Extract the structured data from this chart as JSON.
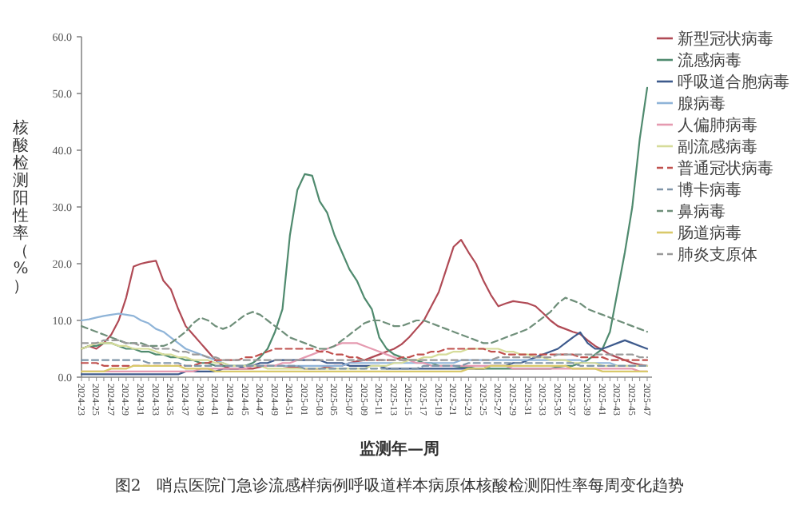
{
  "chart_data": {
    "type": "line",
    "xlabel": "监测年—周",
    "ylabel": "核酸检测阳性率（%）",
    "annotations": [
      "图2　哨点医院门急诊流感样病例呼吸道样本病原体核酸检测阳性率每周变化趋势"
    ],
    "categories": [
      "2024-23",
      null,
      "2024-25",
      null,
      "2024-27",
      null,
      "2024-29",
      null,
      "2024-31",
      null,
      "2024-33",
      null,
      "2024-35",
      null,
      "2024-37",
      null,
      "2024-39",
      null,
      "2024-41",
      null,
      "2024-43",
      null,
      "2024-45",
      null,
      "2024-47",
      null,
      "2024-49",
      null,
      "2024-51",
      null,
      "2025-01",
      null,
      "2025-03",
      null,
      "2025-05",
      null,
      "2025-07",
      null,
      "2025-09",
      null,
      "2025-11",
      null,
      "2025-13",
      null,
      "2025-15",
      null,
      "2025-17",
      null,
      "2025-19",
      null,
      "2025-21",
      null,
      "2025-23",
      null,
      "2025-25",
      null,
      "2025-27",
      null,
      "2025-29",
      null,
      "2025-31",
      null,
      "2025-33",
      null,
      "2025-35",
      null,
      "2025-37",
      null,
      "2025-39",
      null,
      "2025-41",
      null,
      "2025-43",
      null,
      "2025-45",
      null,
      "2025-47"
    ],
    "ylim": [
      0,
      60
    ],
    "yticks": [
      {
        "value": 0,
        "label": "0.0"
      },
      {
        "value": 10,
        "label": "10.0"
      },
      {
        "value": 20,
        "label": "20.0"
      },
      {
        "value": 30,
        "label": "30.0"
      },
      {
        "value": 40,
        "label": "40.0"
      },
      {
        "value": 50,
        "label": "50.0"
      },
      {
        "value": 60,
        "label": "60.0"
      }
    ],
    "legend": "right",
    "grid": false,
    "marker": "none",
    "series": [
      {
        "name": "新型冠状病毒",
        "color": "#b04a55",
        "line_style": "solid",
        "values": [
          5,
          5.5,
          5,
          6,
          7.5,
          10,
          14,
          19.5,
          20,
          20.3,
          20.5,
          17,
          15.5,
          12,
          9,
          7.5,
          6,
          4.5,
          3,
          2,
          1.5,
          1.5,
          1.5,
          1.5,
          1.8,
          2,
          2,
          2,
          1.8,
          1.8,
          1.5,
          1.5,
          1.5,
          1.8,
          2,
          2,
          2.5,
          2.8,
          3,
          3.5,
          4,
          4.5,
          5,
          5.8,
          7,
          8.5,
          10,
          12.5,
          15,
          19,
          23,
          24.2,
          22,
          20,
          17,
          14.5,
          12.5,
          13,
          13.4,
          13.2,
          13,
          12.5,
          11.3,
          10,
          9,
          8.5,
          8,
          7.6,
          6.5,
          5.5,
          4.8,
          4,
          3.5,
          3,
          2.5,
          2.2,
          2
        ]
      },
      {
        "name": "流感病毒",
        "color": "#4f8a6e",
        "line_style": "solid",
        "values": [
          5,
          5.5,
          5.5,
          6,
          6,
          5.5,
          5,
          5,
          4.5,
          4.5,
          4,
          4,
          3.5,
          3.5,
          3,
          3,
          2.5,
          2.5,
          2,
          2,
          2,
          2,
          2,
          2.5,
          3.5,
          5,
          8,
          12,
          25,
          33,
          35.8,
          35.5,
          31,
          29,
          25,
          22,
          19,
          17,
          14,
          12,
          7,
          5,
          4,
          3.5,
          3,
          3,
          2.5,
          2.5,
          2,
          2,
          2,
          1.8,
          1.8,
          1.5,
          1.5,
          1.5,
          1.5,
          1.5,
          1.5,
          1.5,
          1.5,
          1.5,
          1.5,
          1.5,
          1.8,
          2,
          2,
          2.5,
          3,
          4,
          5,
          8,
          15,
          22,
          30,
          42,
          51
        ]
      },
      {
        "name": "呼吸道合胞病毒",
        "color": "#3d5a8c",
        "line_style": "solid",
        "values": [
          0.5,
          0.5,
          0.5,
          0.5,
          0.5,
          0.5,
          0.5,
          0.5,
          0.5,
          0.5,
          0.5,
          0.5,
          0.5,
          0.5,
          1,
          1,
          1,
          1,
          1,
          1.5,
          1.5,
          1.5,
          2,
          2,
          2.5,
          2.5,
          3,
          3,
          3,
          3,
          3,
          3,
          3,
          2.5,
          2.5,
          2.5,
          2,
          2,
          2,
          2,
          2,
          1.5,
          1.5,
          1.5,
          1.5,
          1.5,
          1.5,
          1.5,
          1.5,
          1.5,
          1.5,
          1.5,
          1.5,
          1.5,
          1.5,
          2,
          2,
          2,
          2.5,
          2.5,
          3,
          3.5,
          4,
          4.5,
          5,
          6,
          7,
          7.9,
          6,
          5,
          5,
          5.5,
          6,
          6.5,
          6,
          5.5,
          5
        ]
      },
      {
        "name": "腺病毒",
        "color": "#8fb4d8",
        "line_style": "solid",
        "values": [
          10,
          10.2,
          10.5,
          10.8,
          11,
          11.2,
          11,
          10.8,
          10,
          9.5,
          8.5,
          8,
          7,
          6,
          5,
          4.5,
          4,
          3.5,
          3,
          2.5,
          2,
          2,
          2,
          2,
          2,
          2,
          2,
          2,
          2,
          2,
          2,
          2,
          2,
          2,
          2,
          2,
          2.5,
          2.5,
          2.5,
          2.5,
          2.5,
          2.5,
          2.5,
          2.5,
          2.5,
          2.5,
          2.5,
          2.5,
          2.5,
          2.5,
          2.5,
          3,
          3,
          3,
          3,
          3,
          3,
          3,
          3,
          3,
          3,
          3,
          3,
          3,
          3,
          3,
          3,
          3,
          2.5,
          2.5,
          2.5,
          2.5,
          2,
          2,
          2,
          2,
          2
        ]
      },
      {
        "name": "人偏肺病毒",
        "color": "#e59ab0",
        "line_style": "solid",
        "values": [
          1,
          1,
          1,
          1,
          1,
          1,
          1,
          1,
          1,
          1,
          1,
          1,
          1,
          1,
          1,
          1,
          1.5,
          1.5,
          1.5,
          1.5,
          1.5,
          1.5,
          1.5,
          2,
          2,
          2,
          2,
          2.5,
          2.5,
          3,
          3.5,
          4,
          4.5,
          5,
          5.5,
          6,
          6,
          6,
          5.5,
          5,
          4.5,
          4,
          3.5,
          3,
          3,
          2.5,
          2.5,
          2,
          2,
          2,
          2,
          2,
          2,
          2,
          2,
          2,
          2,
          2,
          1.5,
          1.5,
          1.5,
          1.5,
          1.5,
          1.5,
          1.5,
          1.5,
          1.5,
          1.5,
          1.5,
          1.5,
          1.5,
          1.5,
          1.5,
          1.5,
          1.5,
          1,
          1
        ]
      },
      {
        "name": "副流感病毒",
        "color": "#d6dc9a",
        "line_style": "solid",
        "values": [
          5,
          5.5,
          6,
          6,
          6,
          5.5,
          5.5,
          5,
          5,
          5,
          4.5,
          4,
          4,
          3.5,
          3.5,
          3,
          3,
          3,
          2.5,
          2.5,
          2,
          2,
          2,
          2,
          2,
          1.5,
          1.5,
          1.5,
          1.5,
          1.5,
          1.5,
          1.5,
          1.5,
          1.5,
          1.5,
          1.5,
          1.5,
          1.5,
          1.5,
          2,
          2,
          2,
          2.5,
          2.5,
          3,
          3,
          3.5,
          3.5,
          4,
          4,
          4.5,
          4.5,
          5,
          5,
          5,
          5,
          5,
          4.5,
          4.5,
          4,
          4,
          3.5,
          3.5,
          3,
          3,
          3,
          2.5,
          2.5,
          2.5,
          2.5,
          2,
          2,
          2,
          2,
          2,
          2,
          2
        ]
      },
      {
        "name": "普通冠状病毒",
        "color": "#c0504d",
        "line_style": "dashed",
        "values": [
          2.5,
          2.5,
          2.5,
          2,
          2,
          2,
          2,
          2,
          2,
          2,
          2,
          2,
          2,
          2,
          2,
          2,
          2.5,
          2.5,
          3,
          3,
          3,
          3,
          3.5,
          3.5,
          4,
          4.5,
          5,
          5,
          5,
          5,
          5,
          5,
          4.5,
          4.5,
          4,
          4,
          3.5,
          3.5,
          3,
          3,
          3,
          3,
          3,
          3.5,
          3.5,
          4,
          4,
          4.5,
          4.5,
          5,
          5,
          5,
          5,
          5,
          5,
          4.5,
          4.5,
          4,
          4,
          4,
          4,
          4,
          4,
          4,
          4,
          4,
          4,
          3.5,
          3.5,
          3.5,
          3.5,
          3,
          3,
          3,
          3,
          3,
          3
        ]
      },
      {
        "name": "博卡病毒",
        "color": "#7f95a8",
        "line_style": "dashed",
        "values": [
          3,
          3,
          3,
          3,
          3,
          3,
          3,
          3,
          3,
          2.5,
          2.5,
          2.5,
          2.5,
          2.5,
          2,
          2,
          2,
          2,
          2,
          2,
          2,
          2,
          2,
          2,
          2,
          2,
          2,
          2,
          2,
          2,
          1.5,
          1.5,
          1.5,
          1.5,
          1.5,
          1.5,
          1.5,
          1.5,
          1.5,
          1.5,
          1.5,
          1.5,
          1.5,
          1.5,
          1.5,
          1.5,
          2,
          2,
          2,
          2,
          2,
          2,
          2.5,
          2.5,
          2.5,
          2.5,
          2.5,
          2.5,
          2.5,
          2.5,
          2.5,
          2.5,
          2.5,
          2.5,
          2.5,
          2.5,
          2.5,
          2,
          2,
          2,
          2,
          2,
          2,
          2,
          2,
          2,
          2
        ]
      },
      {
        "name": "鼻病毒",
        "color": "#6f8f7a",
        "line_style": "dashed",
        "values": [
          9,
          8.5,
          8,
          7.5,
          7,
          6.5,
          6,
          6,
          6,
          5.5,
          5.5,
          5.5,
          6,
          7,
          8,
          9.5,
          10.5,
          10,
          9,
          8.5,
          9,
          10,
          11,
          11.5,
          11,
          10,
          9,
          8,
          7,
          6.5,
          6,
          5.5,
          5,
          5,
          5.5,
          6.5,
          7.5,
          8.5,
          9.5,
          10,
          10,
          9.5,
          9,
          9,
          9.5,
          10,
          10,
          9.5,
          9,
          8.5,
          8,
          7.5,
          7,
          6.5,
          6,
          6,
          6.5,
          7,
          7.5,
          8,
          8.5,
          9.5,
          10.5,
          11.5,
          13,
          14,
          13.5,
          13,
          12,
          11.5,
          11,
          10.5,
          10,
          9.5,
          9,
          8.5,
          8
        ]
      },
      {
        "name": "肠道病毒",
        "color": "#d9c96a",
        "line_style": "solid",
        "values": [
          1,
          1,
          1,
          1,
          1.5,
          1.5,
          1.5,
          2,
          2,
          2,
          2,
          2,
          2,
          2,
          1.5,
          1.5,
          1.5,
          1.5,
          1,
          1,
          1,
          1,
          1,
          1,
          1,
          1,
          1,
          1,
          1,
          1,
          1,
          1,
          1,
          1,
          1,
          1,
          1,
          1,
          1,
          1,
          1,
          1,
          1,
          1,
          1,
          1,
          1,
          1,
          1,
          1,
          1,
          1,
          1.5,
          1.5,
          1.5,
          2,
          2,
          2,
          2,
          2,
          2,
          2,
          2,
          2,
          2,
          2,
          1.5,
          1.5,
          1.5,
          1.5,
          1,
          1,
          1,
          1,
          1,
          1,
          1
        ]
      },
      {
        "name": "肺炎支原体",
        "color": "#9a9a9a",
        "line_style": "dashed",
        "values": [
          6,
          6,
          6,
          6.5,
          6.5,
          6.5,
          6,
          6,
          5.5,
          5.5,
          5,
          5,
          5,
          4.5,
          4.5,
          4,
          4,
          3.5,
          3.5,
          3,
          3,
          3,
          3,
          3,
          3,
          3,
          3,
          3,
          3,
          3,
          3,
          3,
          3,
          3,
          3,
          3,
          3,
          3,
          3,
          3,
          3,
          3,
          3,
          3,
          3,
          3,
          3,
          3,
          3,
          3,
          3,
          3,
          3,
          3,
          3,
          3,
          3.5,
          3.5,
          3.5,
          3.5,
          3.5,
          3.5,
          3.5,
          3.5,
          4,
          4,
          4,
          4,
          4,
          4,
          4,
          4,
          4,
          4,
          4,
          3.5,
          3.5
        ]
      }
    ]
  }
}
